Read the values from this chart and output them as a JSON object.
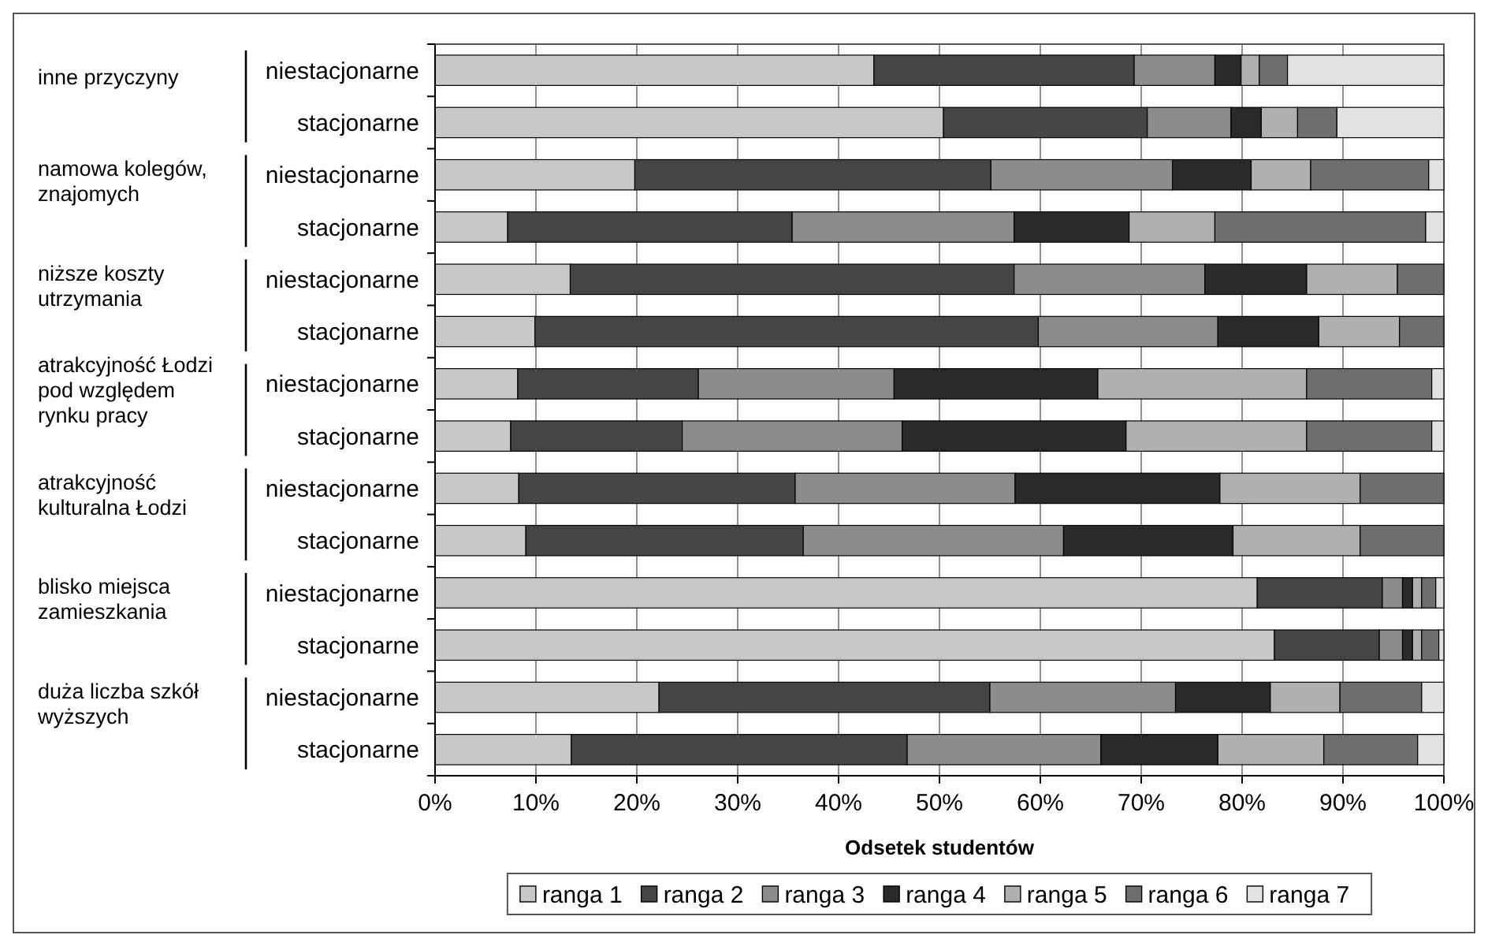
{
  "chart_data": {
    "type": "bar",
    "orientation": "horizontal",
    "stacked": true,
    "categories": [
      "niestacjonarne",
      "stacjonarne",
      "niestacjonarne",
      "stacjonarne",
      "niestacjonarne",
      "stacjonarne",
      "niestacjonarne",
      "stacjonarne",
      "niestacjonarne",
      "stacjonarne",
      "niestacjonarne",
      "stacjonarne",
      "niestacjonarne",
      "stacjonarne"
    ],
    "annotations": [
      "inne przyczyny",
      "namowa kolegów, znajomych",
      "niższe koszty utrzymania",
      "atrakcyjność Łodzi pod względem rynku pracy",
      "atrakcyjność kulturalna Łodzi",
      "blisko miejsca zamieszkania",
      "duża liczba szkół wyższych"
    ],
    "xlabel": "Odsetek studentów",
    "xlim": [
      0,
      100
    ],
    "xticks": [
      {
        "value": 0,
        "label": "0%"
      },
      {
        "value": 10,
        "label": "10%"
      },
      {
        "value": 20,
        "label": "20%"
      },
      {
        "value": 30,
        "label": "30%"
      },
      {
        "value": 40,
        "label": "40%"
      },
      {
        "value": 50,
        "label": "50%"
      },
      {
        "value": 60,
        "label": "60%"
      },
      {
        "value": 70,
        "label": "70%"
      },
      {
        "value": 80,
        "label": "80%"
      },
      {
        "value": 90,
        "label": "90%"
      },
      {
        "value": 100,
        "label": "100%"
      }
    ],
    "grid": "x",
    "legend": "bottom",
    "series": [
      {
        "name": "ranga 1",
        "color": "#c8c8c8",
        "values": [
          43.5,
          50.4,
          19.8,
          7.2,
          13.4,
          9.9,
          8.2,
          7.5,
          8.3,
          9.0,
          81.5,
          83.2,
          22.2,
          13.5
        ]
      },
      {
        "name": "ranga 2",
        "color": "#454545",
        "values": [
          25.8,
          20.2,
          35.3,
          28.2,
          44.0,
          49.9,
          17.9,
          17.0,
          27.4,
          27.5,
          12.4,
          10.4,
          32.8,
          33.3
        ]
      },
      {
        "name": "ranga 3",
        "color": "#8c8c8c",
        "values": [
          8.0,
          8.3,
          18.0,
          22.0,
          18.9,
          17.8,
          19.4,
          21.8,
          21.8,
          25.8,
          2.0,
          2.3,
          18.4,
          19.2
        ]
      },
      {
        "name": "ranga 4",
        "color": "#2a2a2a",
        "values": [
          2.6,
          3.0,
          7.8,
          11.4,
          10.1,
          10.0,
          20.2,
          22.2,
          20.3,
          16.8,
          1.0,
          1.0,
          9.4,
          11.6
        ]
      },
      {
        "name": "ranga 5",
        "color": "#b0b0b0",
        "values": [
          1.8,
          3.6,
          5.9,
          8.5,
          9.0,
          8.0,
          20.7,
          17.9,
          13.9,
          12.6,
          0.9,
          0.9,
          6.9,
          10.5
        ]
      },
      {
        "name": "ranga 6",
        "color": "#6e6e6e",
        "values": [
          2.8,
          3.9,
          11.7,
          20.9,
          4.6,
          4.4,
          12.4,
          12.4,
          8.3,
          8.3,
          1.4,
          1.7,
          8.1,
          9.3
        ]
      },
      {
        "name": "ranga 7",
        "color": "#e2e2e2",
        "values": [
          15.5,
          10.6,
          1.5,
          1.8,
          0,
          0,
          1.2,
          1.2,
          0,
          0,
          0.8,
          0.5,
          2.2,
          2.6
        ]
      }
    ]
  }
}
